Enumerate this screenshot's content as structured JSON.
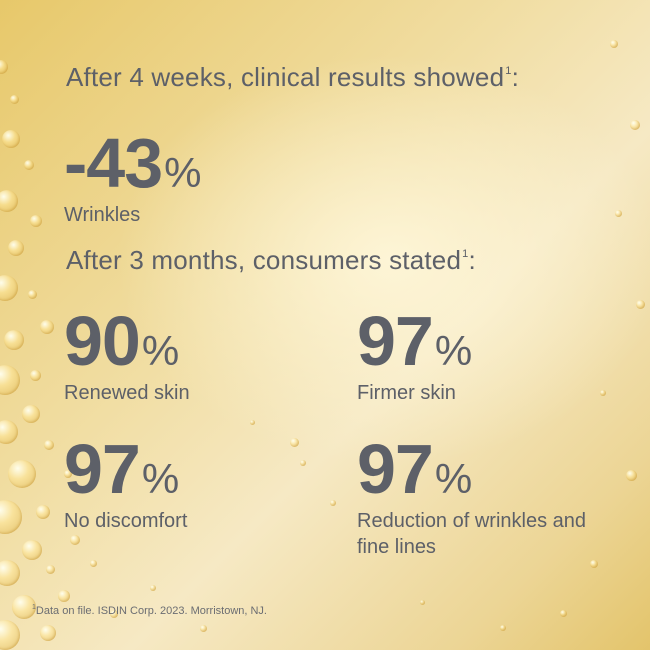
{
  "clinical": {
    "heading": "After 4 weeks, clinical results showed",
    "heading_sup": "1",
    "stat": {
      "value": "-43",
      "unit": "%",
      "label": "Wrinkles"
    }
  },
  "consumer": {
    "heading": "After 3 months, consumers stated",
    "heading_sup": "1",
    "stats": [
      {
        "value": "90",
        "unit": "%",
        "label": "Renewed skin"
      },
      {
        "value": "97",
        "unit": "%",
        "label": "Firmer skin"
      },
      {
        "value": "97",
        "unit": "%",
        "label": "No discomfort"
      },
      {
        "value": "97",
        "unit": "%",
        "label": "Reduction of wrinkles and fine lines"
      }
    ]
  },
  "footnote": {
    "sup": "1",
    "text": "Data on file. ISDIN Corp. 2023. Morristown, NJ."
  },
  "colors": {
    "text": "#5d6068",
    "background_gold": "#ecd595",
    "background_light": "#f6e9c4"
  }
}
